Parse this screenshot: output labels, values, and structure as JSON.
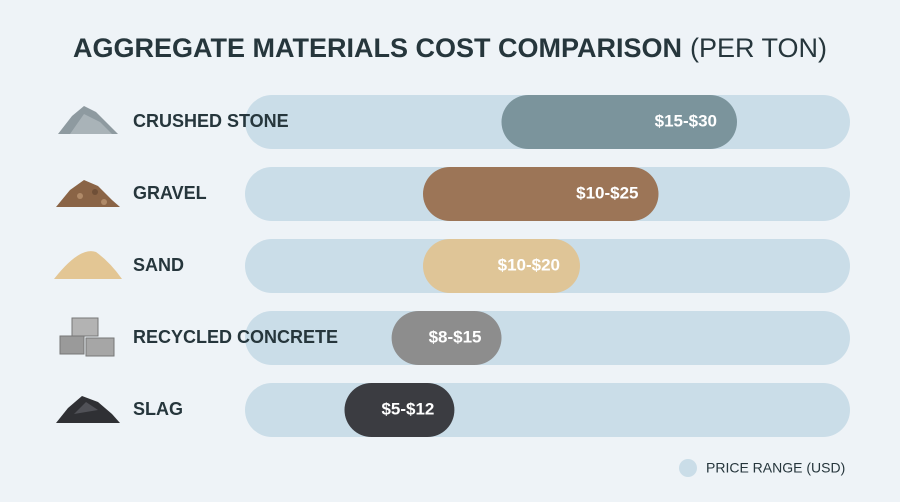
{
  "chart_data": {
    "type": "range-bar",
    "title": "AGGREGATE MATERIALS COST COMPARISON",
    "title_unit": "(PER TON)",
    "categories": [
      "CRUSHED STONE",
      "GRAVEL",
      "SAND",
      "RECYCLED CONCRETE",
      "SLAG"
    ],
    "values": [
      [
        15,
        30
      ],
      [
        10,
        25
      ],
      [
        10,
        20
      ],
      [
        8,
        15
      ],
      [
        5,
        12
      ]
    ],
    "value_labels": [
      "$15-$30",
      "$10-$25",
      "$10-$20",
      "$8-$15",
      "$5-$12"
    ],
    "colors": [
      "#7b949c",
      "#9c7557",
      "#dfc597",
      "#8d8d8d",
      "#3b3c41"
    ],
    "track_color": "#cadde8",
    "legend": {
      "label": "PRICE RANGE (USD)",
      "position": "bottom-right"
    }
  }
}
